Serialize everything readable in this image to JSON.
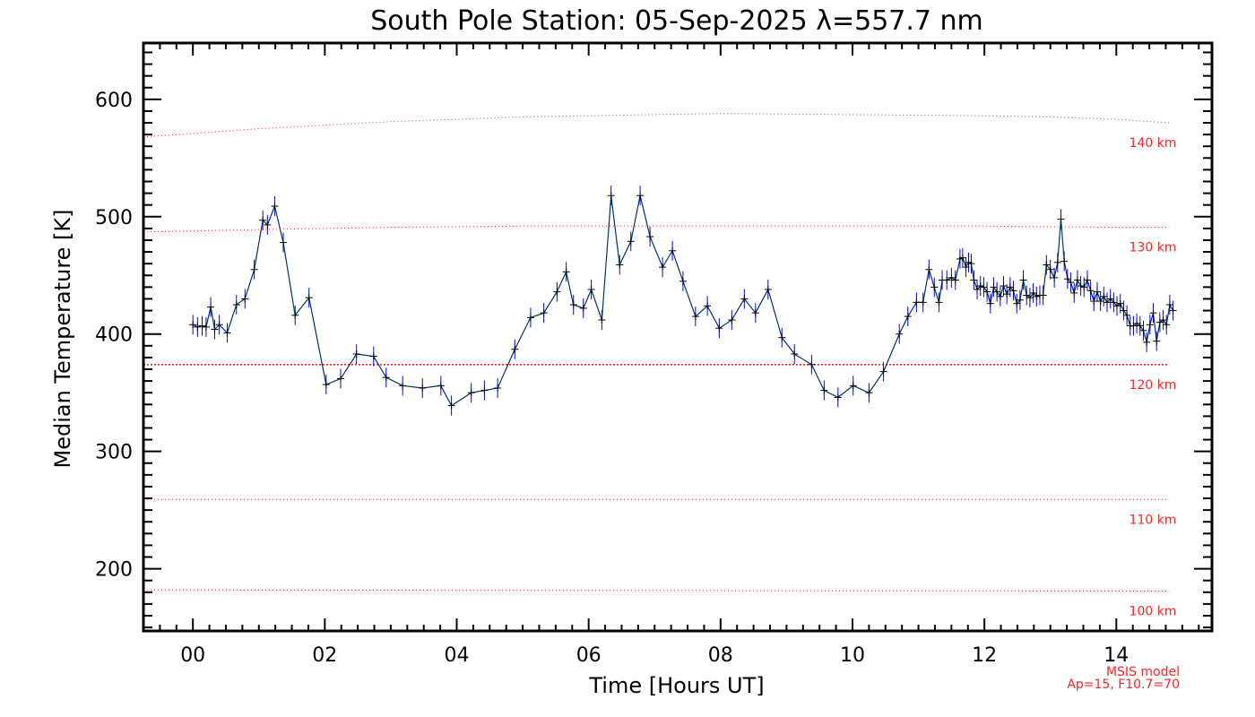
{
  "chart_data": {
    "type": "line",
    "title": "South Pole Station: 05-Sep-2025 λ=557.7 nm",
    "xlabel": "Time [Hours UT]",
    "ylabel": "Median Temperature [K]",
    "xlim": [
      -0.75,
      15.45
    ],
    "ylim": [
      147,
      648
    ],
    "x_ticks": [
      0,
      2,
      4,
      6,
      8,
      10,
      12,
      14
    ],
    "x_tick_labels": [
      "00",
      "02",
      "04",
      "06",
      "08",
      "10",
      "12",
      "14"
    ],
    "y_ticks": [
      200,
      300,
      400,
      500,
      600
    ],
    "y_tick_labels": [
      "200",
      "300",
      "400",
      "500",
      "600"
    ],
    "grid": false,
    "series": [
      {
        "color": "#003366",
        "error_color": "#0000ff",
        "marker": "+",
        "points": [
          [
            0.0,
            408
          ],
          [
            0.07,
            406
          ],
          [
            0.14,
            407
          ],
          [
            0.2,
            406
          ],
          [
            0.27,
            423
          ],
          [
            0.33,
            404
          ],
          [
            0.4,
            408
          ],
          [
            0.52,
            401
          ],
          [
            0.66,
            425
          ],
          [
            0.79,
            430
          ],
          [
            0.93,
            455
          ],
          [
            1.06,
            497
          ],
          [
            1.13,
            493
          ],
          [
            1.24,
            509
          ],
          [
            1.37,
            478
          ],
          [
            1.55,
            416
          ],
          [
            1.76,
            431
          ],
          [
            2.02,
            357
          ],
          [
            2.24,
            362
          ],
          [
            2.48,
            383
          ],
          [
            2.74,
            381
          ],
          [
            2.93,
            363
          ],
          [
            3.18,
            356
          ],
          [
            3.48,
            354
          ],
          [
            3.76,
            356
          ],
          [
            3.92,
            339
          ],
          [
            4.22,
            350
          ],
          [
            4.42,
            352
          ],
          [
            4.62,
            354
          ],
          [
            4.88,
            387
          ],
          [
            5.12,
            414
          ],
          [
            5.32,
            418
          ],
          [
            5.52,
            436
          ],
          [
            5.66,
            453
          ],
          [
            5.77,
            425
          ],
          [
            5.92,
            422
          ],
          [
            6.04,
            438
          ],
          [
            6.2,
            412
          ],
          [
            6.34,
            518
          ],
          [
            6.47,
            459
          ],
          [
            6.64,
            479
          ],
          [
            6.78,
            518
          ],
          [
            6.93,
            483
          ],
          [
            7.12,
            457
          ],
          [
            7.27,
            471
          ],
          [
            7.43,
            445
          ],
          [
            7.62,
            415
          ],
          [
            7.8,
            424
          ],
          [
            7.98,
            405
          ],
          [
            8.17,
            412
          ],
          [
            8.36,
            430
          ],
          [
            8.53,
            418
          ],
          [
            8.72,
            438
          ],
          [
            8.93,
            397
          ],
          [
            9.12,
            383
          ],
          [
            9.38,
            374
          ],
          [
            9.57,
            352
          ],
          [
            9.78,
            346
          ],
          [
            10.01,
            356
          ],
          [
            10.25,
            350
          ],
          [
            10.47,
            368
          ],
          [
            10.71,
            400
          ],
          [
            10.84,
            415
          ],
          [
            10.97,
            427
          ],
          [
            11.07,
            427
          ],
          [
            11.16,
            455
          ],
          [
            11.24,
            440
          ],
          [
            11.31,
            427
          ],
          [
            11.36,
            446
          ],
          [
            11.43,
            446
          ],
          [
            11.5,
            448
          ],
          [
            11.56,
            446
          ],
          [
            11.63,
            464
          ],
          [
            11.67,
            465
          ],
          [
            11.72,
            457
          ],
          [
            11.76,
            461
          ],
          [
            11.8,
            460
          ],
          [
            11.84,
            446
          ],
          [
            11.89,
            438
          ],
          [
            11.94,
            441
          ],
          [
            11.99,
            440
          ],
          [
            12.04,
            436
          ],
          [
            12.09,
            426
          ],
          [
            12.14,
            440
          ],
          [
            12.19,
            436
          ],
          [
            12.24,
            432
          ],
          [
            12.29,
            441
          ],
          [
            12.34,
            434
          ],
          [
            12.39,
            440
          ],
          [
            12.44,
            437
          ],
          [
            12.49,
            426
          ],
          [
            12.54,
            429
          ],
          [
            12.59,
            446
          ],
          [
            12.64,
            433
          ],
          [
            12.69,
            431
          ],
          [
            12.74,
            435
          ],
          [
            12.79,
            432
          ],
          [
            12.84,
            433
          ],
          [
            12.89,
            433
          ],
          [
            12.94,
            459
          ],
          [
            13.0,
            455
          ],
          [
            13.06,
            448
          ],
          [
            13.11,
            461
          ],
          [
            13.16,
            498
          ],
          [
            13.21,
            462
          ],
          [
            13.26,
            447
          ],
          [
            13.31,
            444
          ],
          [
            13.36,
            435
          ],
          [
            13.41,
            446
          ],
          [
            13.46,
            441
          ],
          [
            13.51,
            440
          ],
          [
            13.56,
            446
          ],
          [
            13.61,
            437
          ],
          [
            13.66,
            428
          ],
          [
            13.71,
            436
          ],
          [
            13.76,
            428
          ],
          [
            13.81,
            432
          ],
          [
            13.86,
            427
          ],
          [
            13.91,
            430
          ],
          [
            13.96,
            427
          ],
          [
            14.01,
            424
          ],
          [
            14.06,
            426
          ],
          [
            14.11,
            420
          ],
          [
            14.16,
            416
          ],
          [
            14.21,
            407
          ],
          [
            14.26,
            407
          ],
          [
            14.31,
            409
          ],
          [
            14.36,
            407
          ],
          [
            14.41,
            403
          ],
          [
            14.46,
            393
          ],
          [
            14.51,
            408
          ],
          [
            14.56,
            418
          ],
          [
            14.61,
            394
          ],
          [
            14.66,
            410
          ],
          [
            14.71,
            412
          ],
          [
            14.76,
            408
          ],
          [
            14.81,
            425
          ],
          [
            14.86,
            420
          ]
        ]
      }
    ],
    "msis": {
      "color": "#ff2222",
      "label_lines": [
        "MSIS model",
        "Ap=15, F10.7=70"
      ],
      "levels": [
        {
          "label": "140 km",
          "points": [
            [
              -0.75,
              568
            ],
            [
              1,
              575
            ],
            [
              3,
              581
            ],
            [
              5,
              585
            ],
            [
              7,
              587
            ],
            [
              8,
              588
            ],
            [
              10,
              587
            ],
            [
              12,
              586
            ],
            [
              13,
              585
            ],
            [
              14,
              583
            ],
            [
              14.8,
              580
            ]
          ]
        },
        {
          "label": "130 km",
          "points": [
            [
              -0.75,
              487
            ],
            [
              1,
              489
            ],
            [
              3,
              491
            ],
            [
              5,
              492
            ],
            [
              7,
              492
            ],
            [
              10,
              492
            ],
            [
              12,
              492
            ],
            [
              14,
              491
            ],
            [
              14.8,
              491
            ]
          ]
        },
        {
          "label": "120 km",
          "points": [
            [
              -0.75,
              374
            ],
            [
              14.8,
              374
            ]
          ]
        },
        {
          "label": "110 km",
          "points": [
            [
              -0.75,
              259
            ],
            [
              14.8,
              259
            ]
          ]
        },
        {
          "label": "100 km",
          "points": [
            [
              -0.75,
              182
            ],
            [
              14.8,
              181
            ]
          ]
        }
      ]
    }
  }
}
